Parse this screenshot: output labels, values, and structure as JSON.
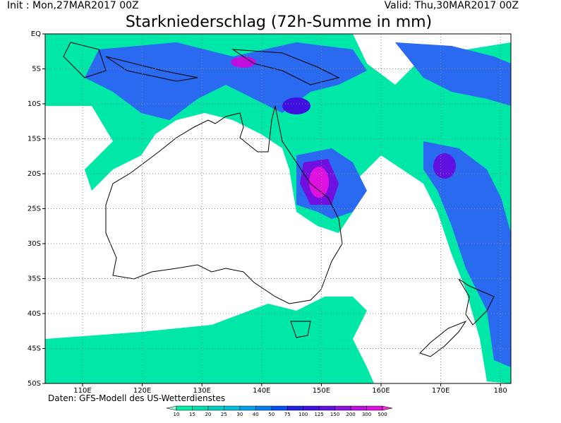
{
  "header": {
    "init": "Init : Mon,27MAR2017 00Z",
    "valid": "Valid: Thu,30MAR2017 00Z",
    "title": "Starkniederschlag (72h-Summe in mm)"
  },
  "axes": {
    "lat": [
      "EQ",
      "5S",
      "10S",
      "15S",
      "20S",
      "25S",
      "30S",
      "35S",
      "40S",
      "45S",
      "50S"
    ],
    "lon": [
      "110E",
      "120E",
      "130E",
      "140E",
      "150E",
      "160E",
      "170E",
      "180"
    ]
  },
  "footer": "Daten: GFS-Modell des US-Wetterdienstes",
  "legend": {
    "labels": [
      10,
      15,
      20,
      25,
      30,
      40,
      50,
      75,
      100,
      125,
      150,
      200,
      300,
      500
    ],
    "colors": [
      "#a0f5d0",
      "#00f0a8",
      "#00e0b0",
      "#00d0c8",
      "#00c0e0",
      "#00a0f0",
      "#0080f0",
      "#0050f0",
      "#2020e0",
      "#4010e0",
      "#6010e0",
      "#9010e0",
      "#c010e0",
      "#e010e0",
      "#f030d0"
    ]
  }
}
